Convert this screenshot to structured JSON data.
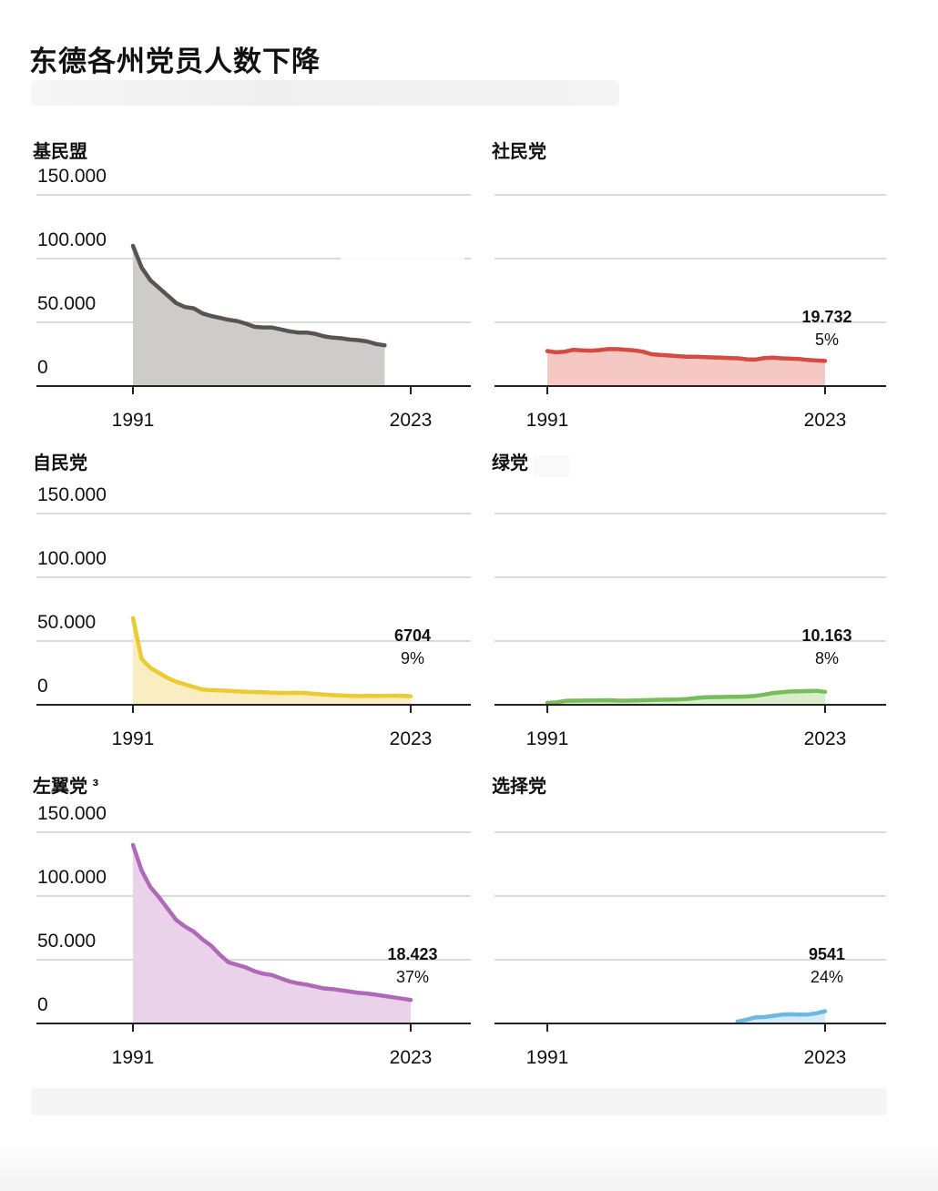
{
  "title": "东德各州党员人数下降",
  "chart_data": [
    {
      "type": "area",
      "name": "基民盟",
      "title": "基民盟",
      "color": "#5a5350",
      "fill": "#cdcccb",
      "y_ticks": [
        "150.000",
        "100.000",
        "50.000",
        "0"
      ],
      "ylim": [
        0,
        150000
      ],
      "xlim": [
        1991,
        2023
      ],
      "x_labels": [
        "1991",
        "2023"
      ],
      "x": [
        1991,
        1992,
        1993,
        1994,
        1995,
        1996,
        1997,
        1998,
        1999,
        2000,
        2001,
        2002,
        2003,
        2004,
        2005,
        2006,
        2007,
        2008,
        2009,
        2010,
        2011,
        2012,
        2013,
        2014,
        2015,
        2016,
        2017,
        2018,
        2019,
        2020,
        2021,
        2022,
        2023
      ],
      "values": [
        110000,
        93000,
        83000,
        77000,
        71000,
        65000,
        62000,
        61000,
        57000,
        55000,
        53500,
        52000,
        51000,
        49000,
        46500,
        46000,
        46000,
        44500,
        43000,
        42000,
        42000,
        41000,
        39000,
        38000,
        37500,
        36500,
        36000,
        35000,
        33000,
        32000,
        null,
        null,
        null
      ],
      "value_label": "",
      "percent_label": ""
    },
    {
      "type": "area",
      "name": "社民党",
      "title": "社民党",
      "color": "#d44b41",
      "fill": "#f6c8c4",
      "y_ticks": [],
      "ylim": [
        0,
        150000
      ],
      "xlim": [
        1991,
        2023
      ],
      "x_labels": [
        "1991",
        "2023"
      ],
      "x": [
        1991,
        1992,
        1993,
        1994,
        1995,
        1996,
        1997,
        1998,
        1999,
        2000,
        2001,
        2002,
        2003,
        2004,
        2005,
        2006,
        2007,
        2008,
        2009,
        2010,
        2011,
        2012,
        2013,
        2014,
        2015,
        2016,
        2017,
        2018,
        2019,
        2020,
        2021,
        2022,
        2023
      ],
      "values": [
        27500,
        26500,
        27000,
        28500,
        28000,
        27800,
        28200,
        29000,
        29000,
        28500,
        28000,
        27000,
        25000,
        24500,
        24000,
        23500,
        23000,
        23000,
        22800,
        22500,
        22300,
        22000,
        21800,
        21000,
        20800,
        22000,
        22300,
        21800,
        21500,
        21300,
        20500,
        20100,
        19732
      ],
      "value_label": "19.732",
      "percent_label": "5%"
    },
    {
      "type": "area",
      "name": "自民党",
      "title": "自民党",
      "color": "#ecca33",
      "fill": "#faedc2",
      "y_ticks": [
        "150.000",
        "100.000",
        "50.000",
        "0"
      ],
      "ylim": [
        0,
        150000
      ],
      "xlim": [
        1991,
        2023
      ],
      "x_labels": [
        "1991",
        "2023"
      ],
      "x": [
        1991,
        1992,
        1993,
        1994,
        1995,
        1996,
        1997,
        1998,
        1999,
        2000,
        2001,
        2002,
        2003,
        2004,
        2005,
        2006,
        2007,
        2008,
        2009,
        2010,
        2011,
        2012,
        2013,
        2014,
        2015,
        2016,
        2017,
        2018,
        2019,
        2020,
        2021,
        2022,
        2023
      ],
      "values": [
        68000,
        36000,
        29000,
        25000,
        21000,
        18000,
        16000,
        14000,
        12000,
        11500,
        11200,
        11000,
        10500,
        10200,
        10000,
        9800,
        9500,
        9300,
        9200,
        9400,
        9100,
        8500,
        8000,
        7600,
        7300,
        7000,
        6800,
        7100,
        7000,
        6900,
        7200,
        7100,
        6704
      ],
      "value_label": "6704",
      "percent_label": "9%"
    },
    {
      "type": "area",
      "name": "绿党",
      "title": "绿党",
      "color": "#78bd5a",
      "fill": "#d8edca",
      "y_ticks": [],
      "ylim": [
        0,
        150000
      ],
      "xlim": [
        1991,
        2023
      ],
      "x_labels": [
        "1991",
        "2023"
      ],
      "x": [
        1991,
        1992,
        1993,
        1994,
        1995,
        1996,
        1997,
        1998,
        1999,
        2000,
        2001,
        2002,
        2003,
        2004,
        2005,
        2006,
        2007,
        2008,
        2009,
        2010,
        2011,
        2012,
        2013,
        2014,
        2015,
        2016,
        2017,
        2018,
        2019,
        2020,
        2021,
        2022,
        2023
      ],
      "values": [
        1500,
        1800,
        3000,
        3200,
        3300,
        3400,
        3500,
        3600,
        3300,
        3200,
        3400,
        3600,
        3800,
        3900,
        4000,
        4200,
        4500,
        5200,
        5800,
        6000,
        6100,
        6200,
        6300,
        6500,
        7000,
        8000,
        9200,
        9800,
        10400,
        10600,
        10800,
        10900,
        10163
      ],
      "value_label": "10.163",
      "percent_label": "8%"
    },
    {
      "type": "area",
      "name": "左翼党",
      "title": "左翼党 ³",
      "color": "#b069b9",
      "fill": "#e9d2ea",
      "y_ticks": [
        "150.000",
        "100.000",
        "50.000",
        "0"
      ],
      "ylim": [
        0,
        150000
      ],
      "xlim": [
        1991,
        2023
      ],
      "x_labels": [
        "1991",
        "2023"
      ],
      "x": [
        1991,
        1992,
        1993,
        1994,
        1995,
        1996,
        1997,
        1998,
        1999,
        2000,
        2001,
        2002,
        2003,
        2004,
        2005,
        2006,
        2007,
        2008,
        2009,
        2010,
        2011,
        2012,
        2013,
        2014,
        2015,
        2016,
        2017,
        2018,
        2019,
        2020,
        2021,
        2022,
        2023
      ],
      "values": [
        140000,
        120000,
        107000,
        99000,
        90000,
        81000,
        76000,
        72000,
        66000,
        61000,
        54000,
        48000,
        46000,
        44000,
        41000,
        39000,
        38000,
        35500,
        33000,
        31500,
        30500,
        29000,
        27500,
        27000,
        26000,
        25000,
        24000,
        23500,
        22500,
        21500,
        20500,
        19500,
        18423
      ],
      "value_label": "18.423",
      "percent_label": "37%"
    },
    {
      "type": "area",
      "name": "选择党",
      "title": "选择党",
      "color": "#6cb8e2",
      "fill": "#d5ebf6",
      "y_ticks": [],
      "ylim": [
        0,
        150000
      ],
      "xlim": [
        1991,
        2023
      ],
      "x_labels": [
        "1991",
        "2023"
      ],
      "x": [
        2013,
        2015,
        2016,
        2017,
        2018,
        2019,
        2020,
        2021,
        2022,
        2023
      ],
      "values": [
        1500,
        4800,
        5000,
        6000,
        6900,
        7200,
        7000,
        7000,
        8000,
        9541
      ],
      "value_label": "9541",
      "percent_label": "24%"
    }
  ]
}
